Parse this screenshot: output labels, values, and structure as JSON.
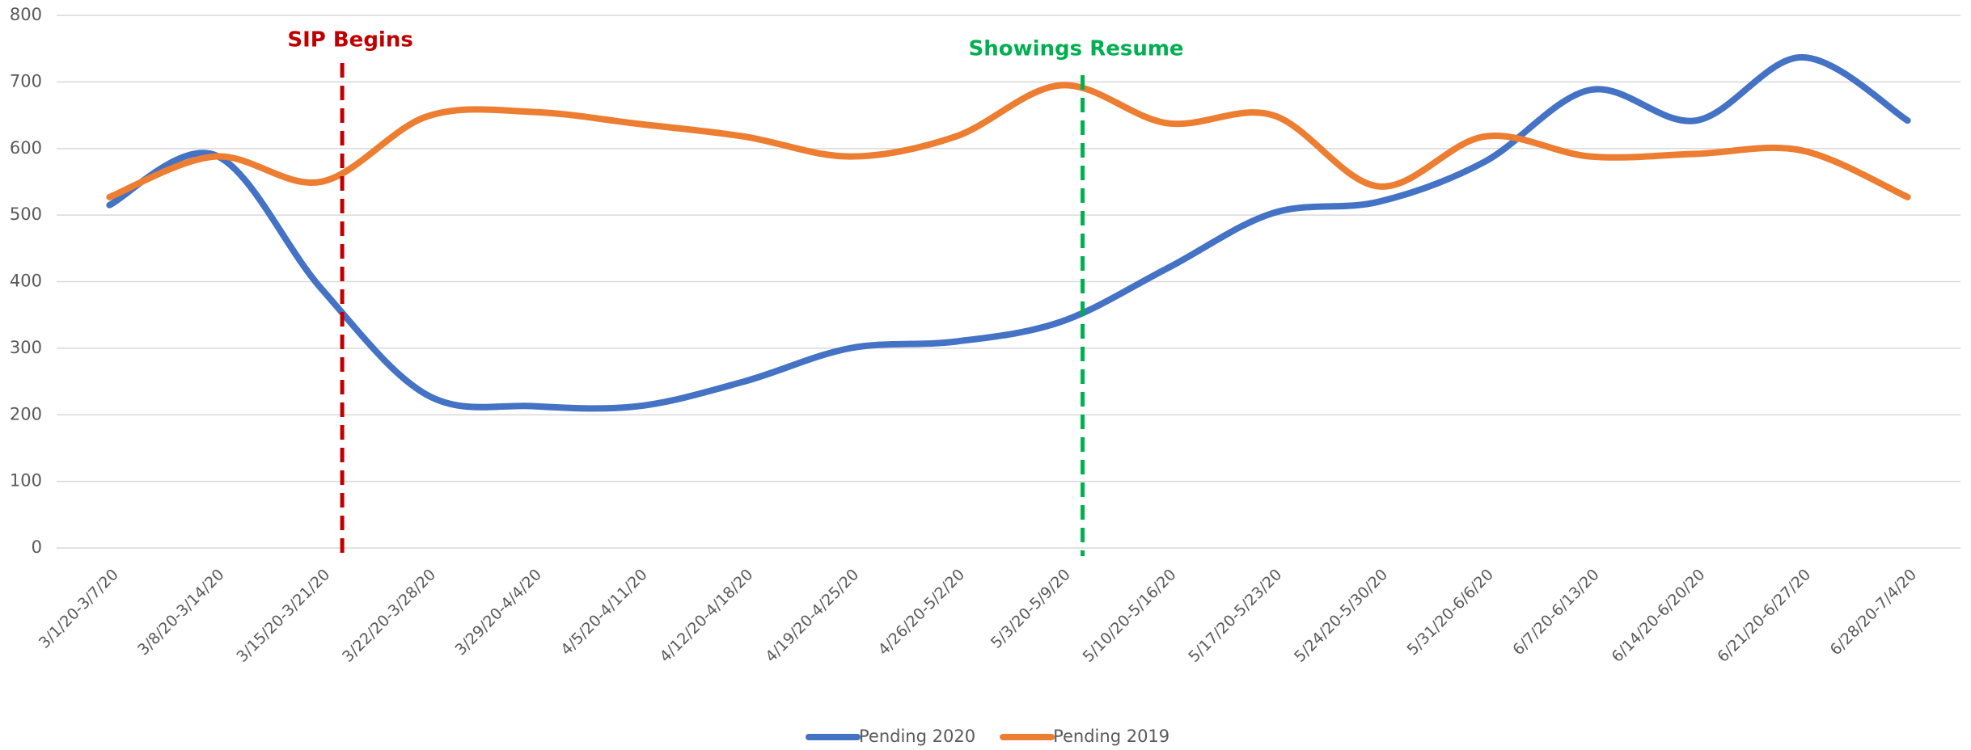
{
  "chart_data": {
    "type": "line",
    "categories": [
      "3/1/20-3/7/20",
      "3/8/20-3/14/20",
      "3/15/20-3/21/20",
      "3/22/20-3/28/20",
      "3/29/20-4/4/20",
      "4/5/20-4/11/20",
      "4/12/20-4/18/20",
      "4/19/20-4/25/20",
      "4/26/20-5/2/20",
      "5/3/20-5/9/20",
      "5/10/20-5/16/20",
      "5/17/20-5/23/20",
      "5/24/20-5/30/20",
      "5/31/20-6/6/20",
      "6/7/20-6/13/20",
      "6/14/20-6/20/20",
      "6/21/20-6/27/20",
      "6/28/20-7/4/20"
    ],
    "series": [
      {
        "name": "Pending 2020",
        "color": "#4472c4",
        "values": [
          515,
          590,
          390,
          230,
          213,
          213,
          250,
          300,
          310,
          340,
          420,
          503,
          520,
          580,
          688,
          642,
          737,
          642
        ]
      },
      {
        "name": "Pending 2019",
        "color": "#ed7d31",
        "values": [
          527,
          588,
          550,
          648,
          655,
          637,
          618,
          588,
          618,
          695,
          638,
          650,
          543,
          618,
          588,
          592,
          597,
          527
        ]
      }
    ],
    "annotations": [
      {
        "text": "SIP Begins",
        "category": "3/15/20-3/21/20",
        "color": "#c00000"
      },
      {
        "text": "Showings Resume",
        "category": "5/3/20-5/9/20",
        "color": "#00b050"
      }
    ],
    "ylim": [
      0,
      800
    ],
    "yticks": [
      0,
      100,
      200,
      300,
      400,
      500,
      600,
      700,
      800
    ],
    "grid": true,
    "legend": "bottom",
    "smooth": true
  }
}
